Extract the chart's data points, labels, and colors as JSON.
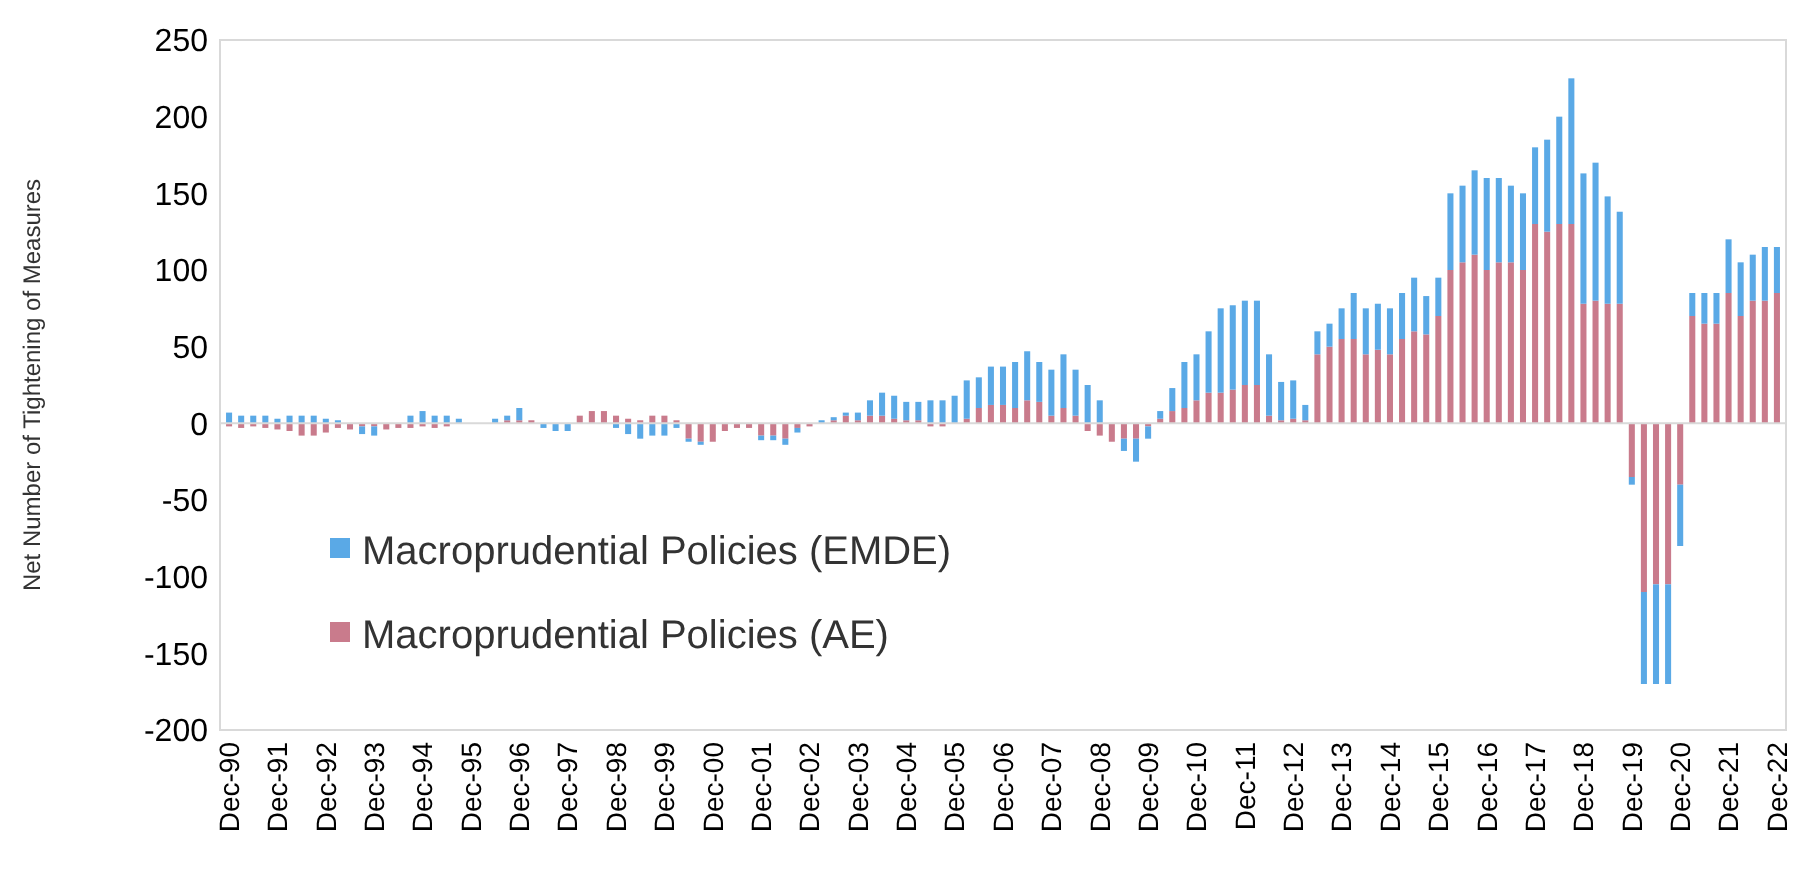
{
  "chart_data": {
    "type": "bar",
    "stacked": true,
    "ylabel": "Net Number of Tightening of Measures",
    "categories": [
      "Dec-90",
      null,
      null,
      null,
      "Dec-91",
      null,
      null,
      null,
      "Dec-92",
      null,
      null,
      null,
      "Dec-93",
      null,
      null,
      null,
      "Dec-94",
      null,
      null,
      null,
      "Dec-95",
      null,
      null,
      null,
      "Dec-96",
      null,
      null,
      null,
      "Dec-97",
      null,
      null,
      null,
      "Dec-98",
      null,
      null,
      null,
      "Dec-99",
      null,
      null,
      null,
      "Dec-00",
      null,
      null,
      null,
      "Dec-01",
      null,
      null,
      null,
      "Dec-02",
      null,
      null,
      null,
      "Dec-03",
      null,
      null,
      null,
      "Dec-04",
      null,
      null,
      null,
      "Dec-05",
      null,
      null,
      null,
      "Dec-06",
      null,
      null,
      null,
      "Dec-07",
      null,
      null,
      null,
      "Dec-08",
      null,
      null,
      null,
      "Dec-09",
      null,
      null,
      null,
      "Dec-10",
      null,
      null,
      null,
      "Dec-11",
      null,
      null,
      null,
      "Dec-12",
      null,
      null,
      null,
      "Dec-13",
      null,
      null,
      null,
      "Dec-14",
      null,
      null,
      null,
      "Dec-15",
      null,
      null,
      null,
      "Dec-16",
      null,
      null,
      null,
      "Dec-17",
      null,
      null,
      null,
      "Dec-18",
      null,
      null,
      null,
      "Dec-19",
      null,
      null,
      null,
      "Dec-20",
      null,
      null,
      null,
      "Dec-21",
      null,
      null,
      null,
      "Dec-22"
    ],
    "series": [
      {
        "name": "Macroprudential Policies (AE)",
        "color": "#c97b8c",
        "values": [
          -2,
          -3,
          -2,
          -3,
          -4,
          -5,
          -8,
          -8,
          -6,
          -3,
          -4,
          -2,
          -2,
          -4,
          -3,
          -3,
          -2,
          -3,
          -2,
          0,
          0,
          0,
          0,
          2,
          2,
          2,
          0,
          0,
          0,
          5,
          8,
          8,
          5,
          3,
          2,
          5,
          5,
          2,
          -10,
          -12,
          -12,
          -5,
          -3,
          -3,
          -8,
          -8,
          -10,
          -3,
          -2,
          0,
          2,
          5,
          2,
          5,
          5,
          3,
          2,
          2,
          -2,
          -2,
          0,
          3,
          10,
          12,
          12,
          10,
          15,
          14,
          5,
          10,
          5,
          -5,
          -8,
          -12,
          -10,
          -10,
          -2,
          3,
          8,
          10,
          15,
          20,
          20,
          22,
          25,
          25,
          5,
          2,
          3,
          2,
          45,
          50,
          55,
          55,
          45,
          48,
          45,
          55,
          60,
          58,
          70,
          100,
          105,
          110,
          100,
          105,
          105,
          100,
          130,
          125,
          130,
          130,
          78,
          80,
          78,
          78,
          -35,
          -110,
          -105,
          -105,
          -40,
          70,
          65,
          65,
          85,
          70,
          80,
          80,
          85
        ]
      },
      {
        "name": "Macroprudential Policies (EMDE)",
        "color": "#5aa9e6",
        "values": [
          7,
          5,
          5,
          5,
          3,
          5,
          5,
          5,
          3,
          2,
          0,
          -5,
          -6,
          0,
          0,
          5,
          8,
          5,
          5,
          3,
          0,
          0,
          3,
          3,
          8,
          0,
          -3,
          -5,
          -5,
          0,
          0,
          0,
          -3,
          -7,
          -10,
          -8,
          -8,
          -3,
          -2,
          -2,
          0,
          0,
          0,
          0,
          -3,
          -3,
          -4,
          -3,
          0,
          2,
          2,
          2,
          5,
          10,
          15,
          15,
          12,
          12,
          15,
          15,
          18,
          25,
          20,
          25,
          25,
          30,
          32,
          26,
          30,
          35,
          30,
          25,
          15,
          0,
          -8,
          -15,
          -8,
          5,
          15,
          30,
          30,
          40,
          55,
          55,
          55,
          55,
          40,
          25,
          25,
          10,
          15,
          15,
          20,
          30,
          30,
          30,
          30,
          30,
          35,
          25,
          25,
          50,
          50,
          55,
          60,
          55,
          50,
          50,
          50,
          60,
          70,
          95,
          85,
          90,
          70,
          60,
          -5,
          -60,
          -65,
          -65,
          -40,
          15,
          20,
          20,
          35,
          35,
          30,
          35,
          30
        ]
      }
    ],
    "ylim": [
      -200,
      250
    ],
    "yticks": [
      -200,
      -150,
      -100,
      -50,
      0,
      50,
      100,
      150,
      200,
      250
    ],
    "legend": "bottom left"
  }
}
